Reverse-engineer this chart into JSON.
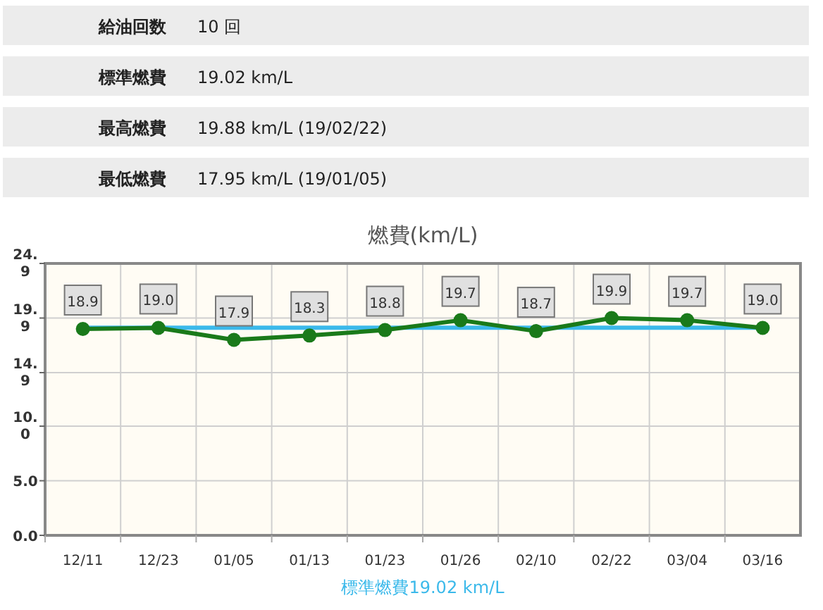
{
  "chart_data": [
    {
      "type": "other",
      "annotations": [
        "給油回数",
        "10 回",
        "標準燃費",
        "19.02 km/L",
        "最高燃費",
        "19.88 km/L (19/02/22)",
        "最低燃費",
        "17.95 km/L (19/01/05)"
      ]
    },
    {
      "type": "line",
      "title": "燃費(km/L)",
      "categories": [
        "12/11",
        "12/23",
        "01/05",
        "01/13",
        "01/23",
        "01/26",
        "02/10",
        "02/22",
        "03/04",
        "03/16"
      ],
      "series": [
        {
          "color": "#1a7a1a",
          "values": [
            18.9,
            19.0,
            17.9,
            18.3,
            18.8,
            19.7,
            18.7,
            19.9,
            19.7,
            19.0
          ],
          "value_labels": [
            "18.9",
            "19.0",
            "17.9",
            "18.3",
            "18.8",
            "19.7",
            "18.7",
            "19.9",
            "19.7",
            "19.0"
          ]
        }
      ],
      "ylim": [
        0,
        24.9
      ],
      "yticks": [
        {
          "value": 0,
          "label": "0.0"
        },
        {
          "value": 5,
          "label": "5.0"
        },
        {
          "value": 10,
          "label": "10.0"
        },
        14.9,
        19.9,
        24.9
      ],
      "ref_lines": [
        {
          "axis": "y",
          "value": 19.02,
          "label": "標準燃費19.02 km/L",
          "color": "#3bb9ea"
        }
      ],
      "grid": true,
      "marker": "circle",
      "line_style": "solid"
    }
  ]
}
